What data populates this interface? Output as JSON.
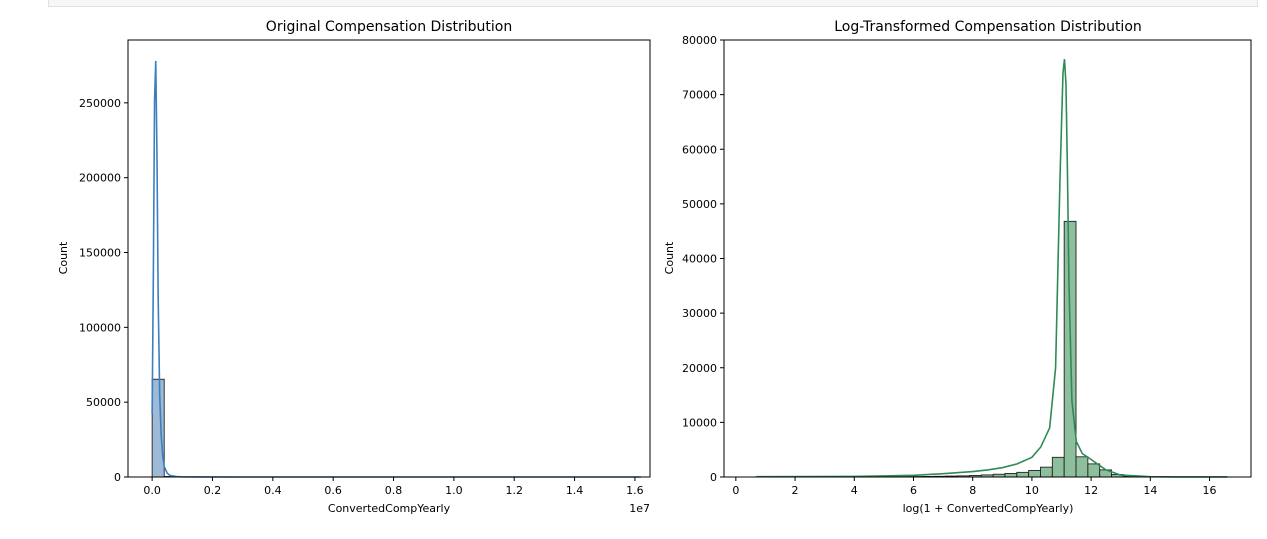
{
  "chart_data": [
    {
      "type": "bar",
      "title": "Original Compensation Distribution",
      "xlabel": "ConvertedCompYearly",
      "ylabel": "Count",
      "x_offset_label": "1e7",
      "xlim": [
        -0.08,
        1.65
      ],
      "ylim": [
        0,
        292000
      ],
      "xticks": [
        0.0,
        0.2,
        0.4,
        0.6,
        0.8,
        1.0,
        1.2,
        1.4,
        1.6
      ],
      "xtick_labels": [
        "0.0",
        "0.2",
        "0.4",
        "0.6",
        "0.8",
        "1.0",
        "1.2",
        "1.4",
        "1.6"
      ],
      "yticks": [
        0,
        50000,
        100000,
        150000,
        200000,
        250000
      ],
      "ytick_labels": [
        "0",
        "50000",
        "100000",
        "150000",
        "200000",
        "250000"
      ],
      "bar_color": "#9dbad6",
      "line_color": "#3b7fbf",
      "bins": [
        {
          "x0": 0.0,
          "x1": 0.04,
          "count": 65300
        },
        {
          "x0": 0.04,
          "x1": 0.08,
          "count": 350
        },
        {
          "x0": 0.08,
          "x1": 0.12,
          "count": 60
        },
        {
          "x0": 0.12,
          "x1": 0.16,
          "count": 20
        }
      ],
      "kde": {
        "x": [
          0.0,
          0.004,
          0.008,
          0.012,
          0.016,
          0.02,
          0.025,
          0.03,
          0.035,
          0.04,
          0.05,
          0.06,
          0.08,
          0.1,
          0.15,
          0.3,
          0.6,
          1.0,
          1.3,
          1.62
        ],
        "y": [
          42000,
          135000,
          252000,
          278000,
          215000,
          120000,
          55000,
          28000,
          14000,
          7000,
          2500,
          1000,
          300,
          80,
          20,
          0,
          0,
          0,
          0,
          0
        ]
      }
    },
    {
      "type": "bar",
      "title": "Log-Transformed Compensation Distribution",
      "xlabel": "log(1 + ConvertedCompYearly)",
      "ylabel": "Count",
      "xlim": [
        -0.4,
        17.4
      ],
      "ylim": [
        0,
        80000
      ],
      "xticks": [
        0,
        2,
        4,
        6,
        8,
        10,
        12,
        14,
        16
      ],
      "xtick_labels": [
        "0",
        "2",
        "4",
        "6",
        "8",
        "10",
        "12",
        "14",
        "16"
      ],
      "yticks": [
        0,
        10000,
        20000,
        30000,
        40000,
        50000,
        60000,
        70000,
        80000
      ],
      "ytick_labels": [
        "0",
        "10000",
        "20000",
        "30000",
        "40000",
        "50000",
        "60000",
        "70000",
        "80000"
      ],
      "bar_color": "#8dbf9c",
      "line_color": "#2e8b57",
      "bins": [
        {
          "x0": 0.69,
          "x1": 1.09,
          "count": 20
        },
        {
          "x0": 1.09,
          "x1": 1.49,
          "count": 10
        },
        {
          "x0": 1.49,
          "x1": 1.89,
          "count": 10
        },
        {
          "x0": 1.89,
          "x1": 2.29,
          "count": 10
        },
        {
          "x0": 2.29,
          "x1": 2.69,
          "count": 15
        },
        {
          "x0": 2.69,
          "x1": 3.09,
          "count": 15
        },
        {
          "x0": 3.09,
          "x1": 3.49,
          "count": 20
        },
        {
          "x0": 3.49,
          "x1": 3.89,
          "count": 20
        },
        {
          "x0": 3.89,
          "x1": 4.29,
          "count": 25
        },
        {
          "x0": 4.29,
          "x1": 4.69,
          "count": 30
        },
        {
          "x0": 4.69,
          "x1": 5.09,
          "count": 40
        },
        {
          "x0": 5.09,
          "x1": 5.49,
          "count": 50
        },
        {
          "x0": 5.49,
          "x1": 5.89,
          "count": 60
        },
        {
          "x0": 5.89,
          "x1": 6.29,
          "count": 80
        },
        {
          "x0": 6.29,
          "x1": 6.69,
          "count": 100
        },
        {
          "x0": 6.69,
          "x1": 7.09,
          "count": 130
        },
        {
          "x0": 7.09,
          "x1": 7.49,
          "count": 170
        },
        {
          "x0": 7.49,
          "x1": 7.89,
          "count": 210
        },
        {
          "x0": 7.89,
          "x1": 8.29,
          "count": 280
        },
        {
          "x0": 8.29,
          "x1": 8.69,
          "count": 380
        },
        {
          "x0": 8.69,
          "x1": 9.09,
          "count": 500
        },
        {
          "x0": 9.09,
          "x1": 9.49,
          "count": 650
        },
        {
          "x0": 9.49,
          "x1": 9.89,
          "count": 850
        },
        {
          "x0": 9.89,
          "x1": 10.29,
          "count": 1200
        },
        {
          "x0": 10.29,
          "x1": 10.69,
          "count": 1800
        },
        {
          "x0": 10.69,
          "x1": 11.09,
          "count": 3600
        },
        {
          "x0": 11.09,
          "x1": 11.49,
          "count": 46800
        },
        {
          "x0": 11.49,
          "x1": 11.89,
          "count": 3700
        },
        {
          "x0": 11.89,
          "x1": 12.29,
          "count": 2400
        },
        {
          "x0": 12.29,
          "x1": 12.69,
          "count": 1300
        },
        {
          "x0": 12.69,
          "x1": 13.09,
          "count": 450
        },
        {
          "x0": 13.09,
          "x1": 13.49,
          "count": 120
        },
        {
          "x0": 13.49,
          "x1": 13.89,
          "count": 40
        },
        {
          "x0": 13.89,
          "x1": 14.29,
          "count": 20
        },
        {
          "x0": 14.29,
          "x1": 14.69,
          "count": 15
        },
        {
          "x0": 14.69,
          "x1": 15.09,
          "count": 10
        },
        {
          "x0": 15.09,
          "x1": 15.49,
          "count": 10
        },
        {
          "x0": 15.49,
          "x1": 15.89,
          "count": 5
        },
        {
          "x0": 15.89,
          "x1": 16.29,
          "count": 5
        },
        {
          "x0": 16.29,
          "x1": 16.6,
          "count": 5
        }
      ],
      "kde": {
        "x": [
          0.69,
          4,
          6,
          7,
          8,
          8.5,
          9,
          9.5,
          10,
          10.3,
          10.6,
          10.8,
          10.95,
          11.05,
          11.1,
          11.15,
          11.2,
          11.25,
          11.35,
          11.5,
          11.7,
          12,
          12.5,
          13,
          14,
          15,
          16.6
        ],
        "y": [
          50,
          100,
          300,
          600,
          1000,
          1300,
          1700,
          2400,
          3600,
          5500,
          9000,
          20000,
          55000,
          74000,
          76500,
          72000,
          56000,
          36000,
          14000,
          6500,
          4300,
          3200,
          1300,
          350,
          60,
          20,
          10
        ]
      }
    }
  ]
}
